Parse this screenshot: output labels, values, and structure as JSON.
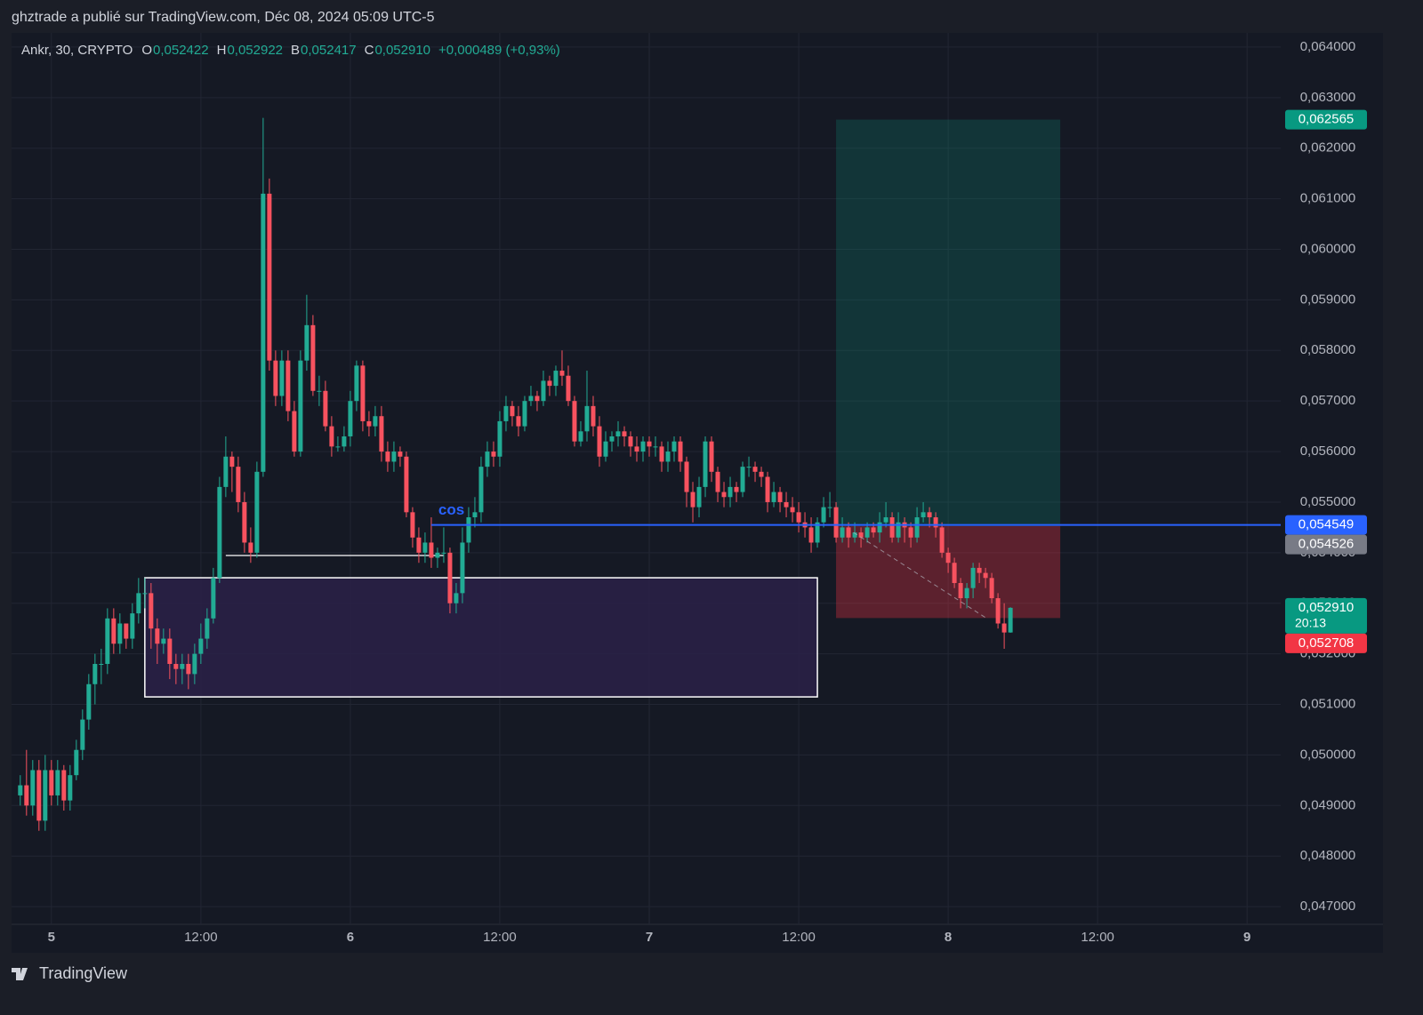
{
  "header": {
    "publisher": "ghztrade a publié sur TradingView.com, Déc 08, 2024 05:09 UTC-5"
  },
  "footer": {
    "brand": "TradingView"
  },
  "chart_data": {
    "type": "candlestick",
    "symbol": "Ankr, 30, CRYPTO",
    "status": [
      {
        "key": "O",
        "value": "0,052422"
      },
      {
        "key": "H",
        "value": "0,052922"
      },
      {
        "key": "B",
        "value": "0,052417"
      },
      {
        "key": "C",
        "value": "0,052910"
      }
    ],
    "change": "+0,000489 (+0,93%)",
    "up_color": "#22ab94",
    "down_color": "#f7525f",
    "grid": true,
    "xlim": [
      92.8,
      194.7
    ],
    "xticks": [
      {
        "value": 96,
        "label": "5"
      },
      {
        "value": 108,
        "label": "12:00"
      },
      {
        "value": 120,
        "label": "6"
      },
      {
        "value": 132,
        "label": "12:00"
      },
      {
        "value": 144,
        "label": "7"
      },
      {
        "value": 156,
        "label": "12:00"
      },
      {
        "value": 168,
        "label": "8"
      },
      {
        "value": 180,
        "label": "12:00"
      },
      {
        "value": 192,
        "label": "9"
      }
    ],
    "ylim": [
      0.04665,
      0.06428
    ],
    "yticks": [
      {
        "value": 0.047,
        "label": "0,047000"
      },
      {
        "value": 0.048,
        "label": "0,048000"
      },
      {
        "value": 0.049,
        "label": "0,049000"
      },
      {
        "value": 0.05,
        "label": "0,050000"
      },
      {
        "value": 0.051,
        "label": "0,051000"
      },
      {
        "value": 0.052,
        "label": "0,052000"
      },
      {
        "value": 0.053,
        "label": "0,053000"
      },
      {
        "value": 0.054,
        "label": "0,054000"
      },
      {
        "value": 0.055,
        "label": "0,055000"
      },
      {
        "value": 0.056,
        "label": "0,056000"
      },
      {
        "value": 0.057,
        "label": "0,057000"
      },
      {
        "value": 0.058,
        "label": "0,058000"
      },
      {
        "value": 0.059,
        "label": "0,059000"
      },
      {
        "value": 0.06,
        "label": "0,060000"
      },
      {
        "value": 0.061,
        "label": "0,061000"
      },
      {
        "value": 0.062,
        "label": "0,062000"
      },
      {
        "value": 0.063,
        "label": "0,063000"
      },
      {
        "value": 0.064,
        "label": "0,064000"
      }
    ],
    "x": [
      93.5,
      94,
      94.5,
      95,
      95.5,
      96,
      96.5,
      97,
      97.5,
      98,
      98.5,
      99,
      99.5,
      100,
      100.5,
      101,
      101.5,
      102,
      102.5,
      103,
      103.5,
      104,
      104.5,
      105,
      105.5,
      106,
      106.5,
      107,
      107.5,
      108,
      108.5,
      109,
      109.5,
      110,
      110.5,
      111,
      111.5,
      112,
      112.5,
      113,
      113.5,
      114,
      114.5,
      115,
      115.5,
      116,
      116.5,
      117,
      117.5,
      118,
      118.5,
      119,
      119.5,
      120,
      120.5,
      121,
      121.5,
      122,
      122.5,
      123,
      123.5,
      124,
      124.5,
      125,
      125.5,
      126,
      126.5,
      127,
      127.5,
      128,
      128.5,
      129,
      129.5,
      130,
      130.5,
      131,
      131.5,
      132,
      132.5,
      133,
      133.5,
      134,
      134.5,
      135,
      135.5,
      136,
      136.5,
      137,
      137.5,
      138,
      138.5,
      139,
      139.5,
      140,
      140.5,
      141,
      141.5,
      142,
      142.5,
      143,
      143.5,
      144,
      144.5,
      145,
      145.5,
      146,
      146.5,
      147,
      147.5,
      148,
      148.5,
      149,
      149.5,
      150,
      150.5,
      151,
      151.5,
      152,
      152.5,
      153,
      153.5,
      154,
      154.5,
      155,
      155.5,
      156,
      156.5,
      157,
      157.5,
      158,
      158.5,
      159,
      159.5,
      160,
      160.5,
      161,
      161.5,
      162,
      162.5,
      163,
      163.5,
      164,
      164.5,
      165,
      165.5,
      166,
      166.5,
      167,
      167.5,
      168,
      168.5,
      169,
      169.5,
      170,
      170.5,
      171,
      171.5,
      172,
      172.5,
      173
    ],
    "open": [
      0.0492,
      0.0494,
      0.049,
      0.0497,
      0.0487,
      0.0497,
      0.0492,
      0.0497,
      0.0491,
      0.0496,
      0.0501,
      0.0507,
      0.0514,
      0.0518,
      0.0518,
      0.0527,
      0.0522,
      0.0526,
      0.0523,
      0.0528,
      0.0532,
      0.0532,
      0.0525,
      0.0522,
      0.0523,
      0.0518,
      0.0517,
      0.0518,
      0.0516,
      0.052,
      0.0523,
      0.0527,
      0.0535,
      0.0553,
      0.0559,
      0.0557,
      0.055,
      0.0542,
      0.054,
      0.0556,
      0.0611,
      0.0578,
      0.0571,
      0.0578,
      0.0568,
      0.056,
      0.0578,
      0.0585,
      0.0572,
      0.0572,
      0.0565,
      0.0561,
      0.0561,
      0.0563,
      0.057,
      0.0577,
      0.0566,
      0.0565,
      0.0567,
      0.056,
      0.0558,
      0.056,
      0.0559,
      0.0548,
      0.0543,
      0.054,
      0.0542,
      0.0539,
      0.054,
      0.054,
      0.053,
      0.0532,
      0.0542,
      0.0547,
      0.0548,
      0.0557,
      0.056,
      0.0559,
      0.0566,
      0.0569,
      0.0567,
      0.0565,
      0.057,
      0.0571,
      0.057,
      0.0574,
      0.0573,
      0.0576,
      0.0575,
      0.057,
      0.0562,
      0.0564,
      0.0569,
      0.0565,
      0.0559,
      0.0562,
      0.0563,
      0.0564,
      0.0563,
      0.0561,
      0.056,
      0.0562,
      0.0561,
      0.0561,
      0.0558,
      0.056,
      0.0562,
      0.0558,
      0.0552,
      0.0549,
      0.0553,
      0.0562,
      0.0556,
      0.0552,
      0.0551,
      0.0553,
      0.0552,
      0.0557,
      0.0557,
      0.0556,
      0.0555,
      0.055,
      0.0552,
      0.055,
      0.0549,
      0.0548,
      0.0546,
      0.0545,
      0.0542,
      0.0546,
      0.0549,
      0.0549,
      0.0543,
      0.0545,
      0.0543,
      0.0544,
      0.0543,
      0.0545,
      0.0544,
      0.0546,
      0.0547,
      0.0543,
      0.0546,
      0.0545,
      0.0543,
      0.0547,
      0.0548,
      0.0547,
      0.0545,
      0.054,
      0.0538,
      0.0534,
      0.0531,
      0.0533,
      0.0537,
      0.0536,
      0.0535,
      0.0531,
      0.0526,
      0.052422
    ],
    "high": [
      0.0496,
      0.0501,
      0.0499,
      0.0499,
      0.05,
      0.0499,
      0.0499,
      0.0498,
      0.0498,
      0.0503,
      0.0509,
      0.0516,
      0.052,
      0.0521,
      0.0529,
      0.0529,
      0.0528,
      0.0526,
      0.053,
      0.0535,
      0.0535,
      0.0534,
      0.0527,
      0.0525,
      0.0525,
      0.052,
      0.052,
      0.052,
      0.0522,
      0.0526,
      0.0529,
      0.0537,
      0.0555,
      0.0563,
      0.056,
      0.0559,
      0.0552,
      0.0545,
      0.0558,
      0.0626,
      0.0614,
      0.058,
      0.058,
      0.058,
      0.057,
      0.058,
      0.0591,
      0.0587,
      0.0575,
      0.0574,
      0.0567,
      0.0563,
      0.0565,
      0.0572,
      0.0578,
      0.0578,
      0.0568,
      0.0569,
      0.0569,
      0.0562,
      0.0562,
      0.0561,
      0.056,
      0.0549,
      0.0545,
      0.0544,
      0.0547,
      0.0541,
      0.0545,
      0.0541,
      0.0534,
      0.0545,
      0.0549,
      0.0551,
      0.0559,
      0.0562,
      0.0562,
      0.0568,
      0.0571,
      0.057,
      0.0569,
      0.0571,
      0.0573,
      0.0572,
      0.0576,
      0.0575,
      0.0577,
      0.058,
      0.0577,
      0.0571,
      0.0566,
      0.0576,
      0.0571,
      0.0567,
      0.0564,
      0.0564,
      0.0566,
      0.0565,
      0.0564,
      0.0563,
      0.0563,
      0.0563,
      0.0563,
      0.0562,
      0.0562,
      0.0563,
      0.0563,
      0.0559,
      0.0554,
      0.0555,
      0.0563,
      0.0563,
      0.0557,
      0.0554,
      0.0555,
      0.0554,
      0.0558,
      0.0559,
      0.0558,
      0.0557,
      0.0556,
      0.0554,
      0.0553,
      0.0552,
      0.0551,
      0.055,
      0.0548,
      0.0547,
      0.0547,
      0.0551,
      0.0552,
      0.055,
      0.0547,
      0.0546,
      0.0546,
      0.0545,
      0.0546,
      0.0546,
      0.0548,
      0.055,
      0.0548,
      0.0548,
      0.0547,
      0.0546,
      0.0549,
      0.055,
      0.0549,
      0.0548,
      0.0546,
      0.0541,
      0.0539,
      0.0535,
      0.0534,
      0.0538,
      0.0538,
      0.0537,
      0.0536,
      0.0532,
      0.053,
      0.052922
    ],
    "low": [
      0.049,
      0.0488,
      0.0488,
      0.0485,
      0.0485,
      0.049,
      0.049,
      0.0489,
      0.0489,
      0.0495,
      0.0499,
      0.0505,
      0.051,
      0.0514,
      0.0516,
      0.052,
      0.052,
      0.0521,
      0.0521,
      0.0526,
      0.0529,
      0.0521,
      0.0518,
      0.052,
      0.0515,
      0.0514,
      0.0514,
      0.0513,
      0.0514,
      0.0518,
      0.0521,
      0.0526,
      0.0534,
      0.0551,
      0.0552,
      0.0548,
      0.054,
      0.0538,
      0.0539,
      0.0555,
      0.0576,
      0.0569,
      0.0569,
      0.0566,
      0.0559,
      0.0559,
      0.0576,
      0.0571,
      0.0569,
      0.0564,
      0.0559,
      0.056,
      0.056,
      0.0561,
      0.0568,
      0.0564,
      0.0563,
      0.0563,
      0.0558,
      0.0556,
      0.0556,
      0.0557,
      0.0547,
      0.0541,
      0.0538,
      0.0538,
      0.0537,
      0.0537,
      0.0538,
      0.0528,
      0.0528,
      0.053,
      0.054,
      0.0545,
      0.0546,
      0.0555,
      0.0557,
      0.0557,
      0.0564,
      0.0565,
      0.0563,
      0.0564,
      0.0569,
      0.0568,
      0.0569,
      0.0571,
      0.0571,
      0.0573,
      0.0569,
      0.0561,
      0.0561,
      0.0562,
      0.0563,
      0.0557,
      0.0558,
      0.056,
      0.0561,
      0.0561,
      0.0559,
      0.0558,
      0.0558,
      0.0559,
      0.0559,
      0.0556,
      0.0556,
      0.0558,
      0.0556,
      0.0549,
      0.0546,
      0.0547,
      0.0551,
      0.0554,
      0.055,
      0.0549,
      0.0549,
      0.055,
      0.0551,
      0.0555,
      0.0554,
      0.0553,
      0.0548,
      0.0549,
      0.0548,
      0.0547,
      0.0546,
      0.0544,
      0.0543,
      0.054,
      0.0541,
      0.0545,
      0.0547,
      0.0542,
      0.0542,
      0.0541,
      0.0542,
      0.0541,
      0.0542,
      0.0543,
      0.0542,
      0.0545,
      0.0542,
      0.0542,
      0.0542,
      0.0541,
      0.0542,
      0.0546,
      0.0545,
      0.0543,
      0.0539,
      0.0536,
      0.0533,
      0.0529,
      0.0529,
      0.0531,
      0.0534,
      0.0533,
      0.053,
      0.0525,
      0.0521,
      0.052417
    ],
    "close": [
      0.0494,
      0.049,
      0.0497,
      0.0487,
      0.0497,
      0.0492,
      0.0497,
      0.0491,
      0.0496,
      0.0501,
      0.0507,
      0.0514,
      0.0518,
      0.0518,
      0.0527,
      0.0522,
      0.0526,
      0.0523,
      0.0528,
      0.0532,
      0.0532,
      0.0525,
      0.0522,
      0.0523,
      0.0518,
      0.0517,
      0.0518,
      0.0516,
      0.052,
      0.0523,
      0.0527,
      0.0535,
      0.0553,
      0.0559,
      0.0557,
      0.055,
      0.0542,
      0.054,
      0.0556,
      0.0611,
      0.0578,
      0.0571,
      0.0578,
      0.0568,
      0.056,
      0.0578,
      0.0585,
      0.0572,
      0.0572,
      0.0565,
      0.0561,
      0.0561,
      0.0563,
      0.057,
      0.0577,
      0.0566,
      0.0565,
      0.0567,
      0.056,
      0.0558,
      0.056,
      0.0559,
      0.0548,
      0.0543,
      0.054,
      0.0542,
      0.0539,
      0.054,
      0.054,
      0.053,
      0.0532,
      0.0542,
      0.0547,
      0.0548,
      0.0557,
      0.056,
      0.0559,
      0.0566,
      0.0569,
      0.0567,
      0.0565,
      0.057,
      0.0571,
      0.057,
      0.0574,
      0.0573,
      0.0576,
      0.0575,
      0.057,
      0.0562,
      0.0564,
      0.0569,
      0.0565,
      0.0559,
      0.0562,
      0.0563,
      0.0564,
      0.0563,
      0.0561,
      0.056,
      0.0562,
      0.0561,
      0.0561,
      0.0558,
      0.056,
      0.0562,
      0.0558,
      0.0552,
      0.0549,
      0.0553,
      0.0562,
      0.0556,
      0.0552,
      0.0551,
      0.0553,
      0.0552,
      0.0557,
      0.0557,
      0.0556,
      0.0555,
      0.055,
      0.0552,
      0.055,
      0.0549,
      0.0548,
      0.0546,
      0.0545,
      0.0542,
      0.0546,
      0.0549,
      0.0549,
      0.0543,
      0.0545,
      0.0543,
      0.0544,
      0.0543,
      0.0545,
      0.0544,
      0.0546,
      0.0547,
      0.0543,
      0.0546,
      0.0545,
      0.0543,
      0.0547,
      0.0548,
      0.0547,
      0.0545,
      0.054,
      0.0538,
      0.0534,
      0.0531,
      0.0533,
      0.0537,
      0.0536,
      0.0535,
      0.0531,
      0.0526,
      0.052422,
      0.05291
    ],
    "price_labels": [
      {
        "value": 0.062565,
        "label": "0,062565",
        "color": "#089981"
      },
      {
        "value": 0.054549,
        "label": "0,054549",
        "color": "#2962ff"
      },
      {
        "value": 0.054526,
        "label": "0,054526",
        "color": "#787b86"
      },
      {
        "value": 0.05291,
        "label": "0,052910",
        "color": "#089981",
        "countdown": "20:13"
      },
      {
        "value": 0.052708,
        "label": "0,052708",
        "color": "#f23645"
      }
    ],
    "drawings": {
      "zone": {
        "x": [
          103.5,
          157.5
        ],
        "y": [
          0.051148,
          0.053504
        ],
        "color": "#2a2148",
        "stroke": "#ffffff"
      },
      "level": {
        "x": [
          110,
          127.5
        ],
        "y": 0.053944,
        "color": "#ffffff"
      },
      "bos_line": {
        "x": [
          126.5,
          194.7
        ],
        "y": 0.054549,
        "color": "#2962ff",
        "label": "cos"
      },
      "position": {
        "x": [
          159,
          177
        ],
        "target": 0.062565,
        "entry": 0.054526,
        "stop": 0.052708
      },
      "path": {
        "x": [
          160.4,
          171.1
        ],
        "y": [
          0.0544,
          0.0527
        ]
      }
    }
  }
}
